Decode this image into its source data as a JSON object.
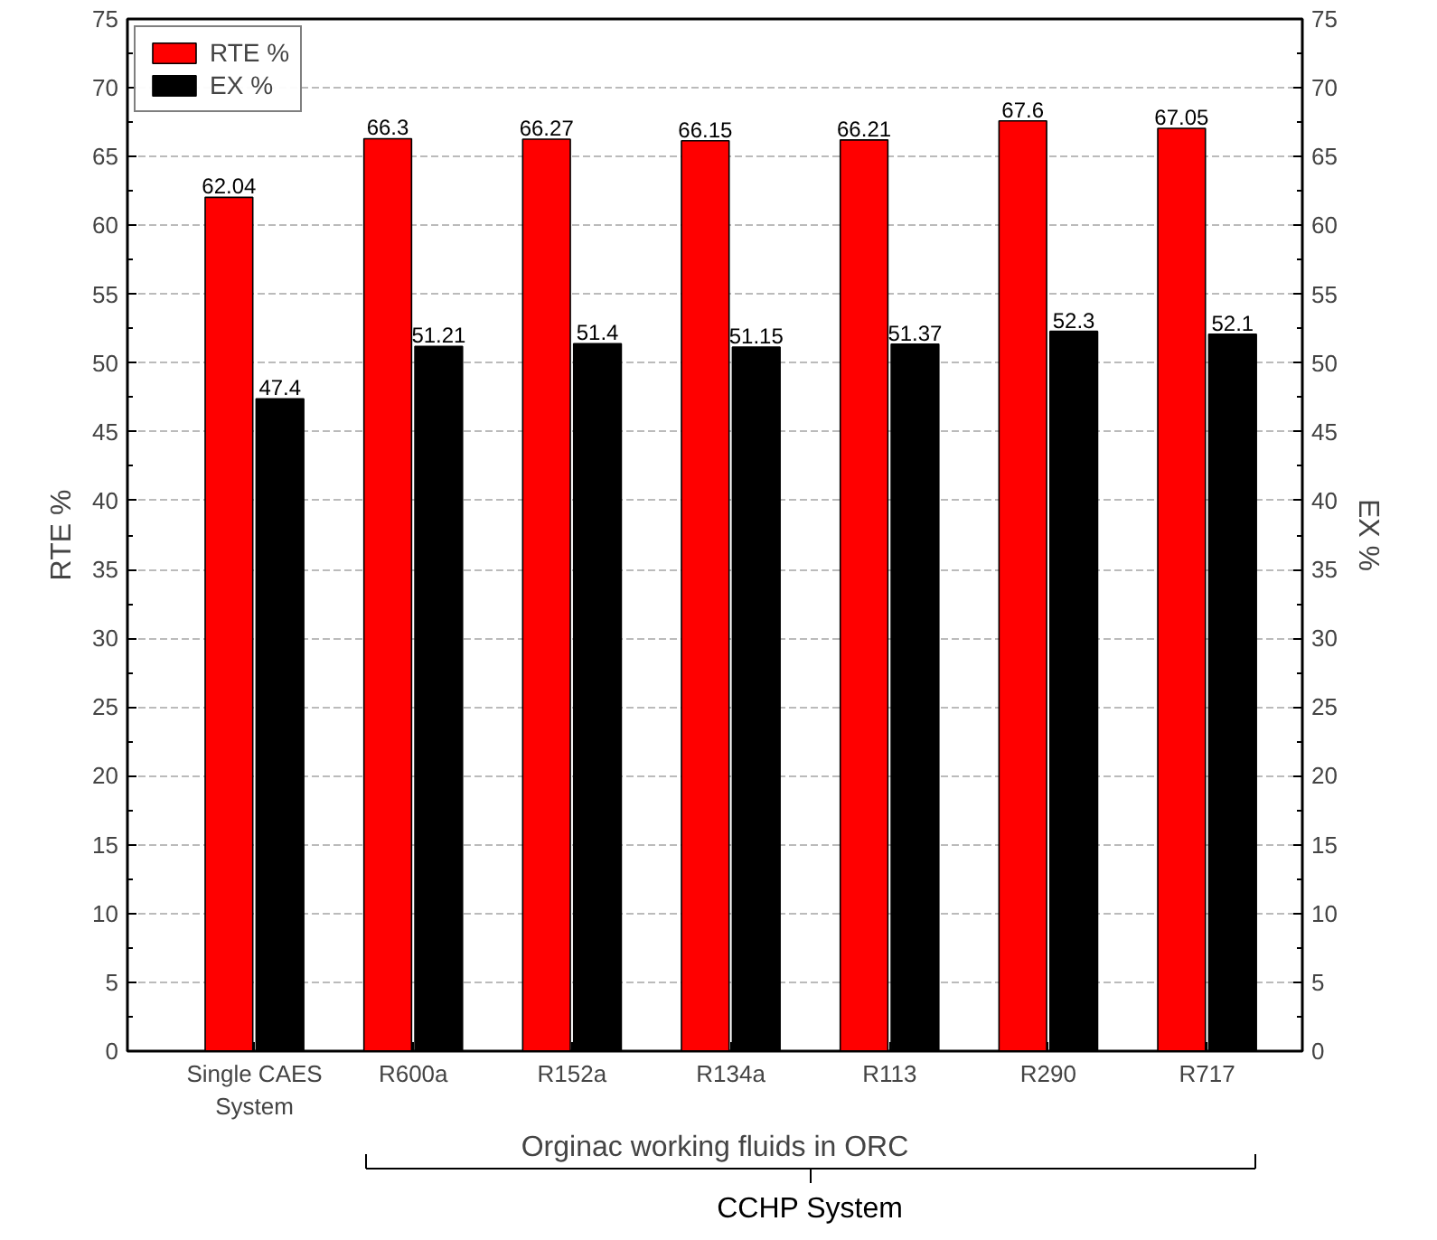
{
  "chart_data": {
    "type": "bar",
    "xlabel": "Orginac working fluids in ORC",
    "ylabel": "RTE %",
    "y2label": "EX %",
    "categories": [
      "Single CAES System",
      "R600a",
      "R152a",
      "R134a",
      "R113",
      "R290",
      "R717"
    ],
    "series": [
      {
        "name": "RTE %",
        "color": "#ff0000",
        "values": [
          62.04,
          66.3,
          66.27,
          66.15,
          66.21,
          67.6,
          67.05
        ]
      },
      {
        "name": "EX %",
        "color": "#000000",
        "values": [
          47.4,
          51.21,
          51.4,
          51.15,
          51.37,
          52.3,
          52.1
        ]
      }
    ],
    "ylim": [
      0,
      75
    ],
    "yticks": [
      0,
      5,
      10,
      15,
      20,
      25,
      30,
      35,
      40,
      45,
      50,
      55,
      60,
      65,
      70,
      75
    ],
    "y2lim": [
      0,
      75
    ],
    "y2ticks": [
      0,
      5,
      10,
      15,
      20,
      25,
      30,
      35,
      40,
      45,
      50,
      55,
      60,
      65,
      70,
      75
    ],
    "annotations": [
      "CCHP System"
    ],
    "data_labels": true,
    "grid": "y",
    "legend": "top left"
  }
}
